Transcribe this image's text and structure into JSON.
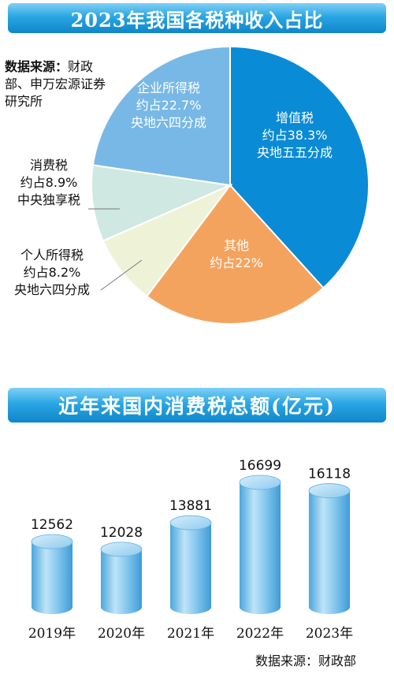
{
  "pie": {
    "title": "2023年我国各税种收入占比",
    "source_label": "数据来源：",
    "source": "财政部、申万宏源证券研究所",
    "chart_data": {
      "type": "pie",
      "title": "2023年我国各税种收入占比",
      "slices": [
        {
          "name": "增值税",
          "share_text": "约占38.3%",
          "note": "央地五五分成",
          "value": 38.3,
          "color": "#0a8bd6"
        },
        {
          "name": "其他",
          "share_text": "约占22%",
          "note": "",
          "value": 22.0,
          "color": "#f4a35e"
        },
        {
          "name": "个人所得税",
          "share_text": "约占8.2%",
          "note": "央地六四分成",
          "value": 8.2,
          "color": "#eef3d8"
        },
        {
          "name": "消费税",
          "share_text": "约占8.9%",
          "note": "中央独享税",
          "value": 8.9,
          "color": "#cfe8e2"
        },
        {
          "name": "企业所得税",
          "share_text": "约占22.7%",
          "note": "央地六四分成",
          "value": 22.7,
          "color": "#78b8e6"
        }
      ]
    }
  },
  "bars": {
    "title": "近年来国内消费税总额(亿元)",
    "source": "数据来源：财政部",
    "chart_data": {
      "type": "bar",
      "title": "近年来国内消费税总额(亿元)",
      "categories": [
        "2019年",
        "2020年",
        "2021年",
        "2022年",
        "2023年"
      ],
      "values": [
        12562,
        12028,
        13881,
        16699,
        16118
      ]
    }
  }
}
